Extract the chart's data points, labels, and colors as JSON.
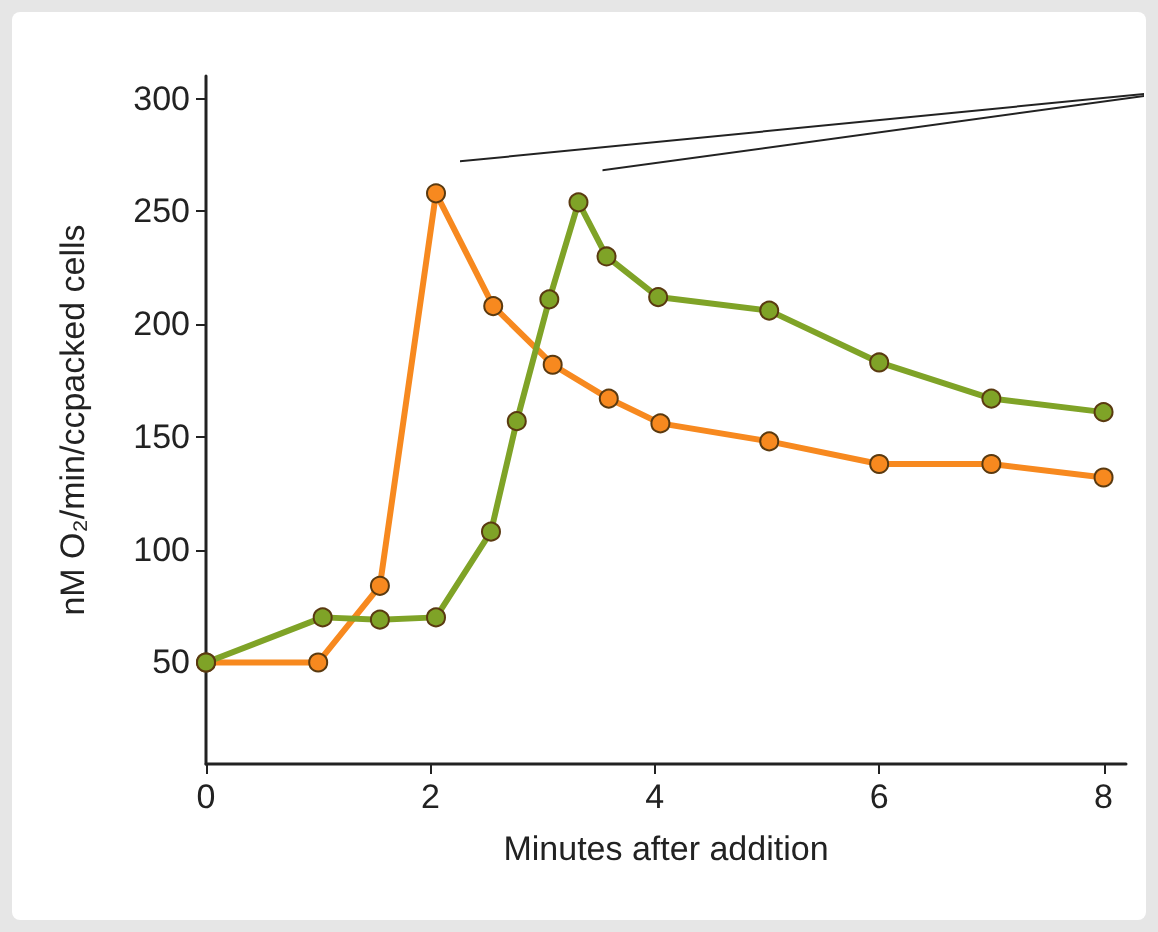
{
  "chart_data": {
    "type": "line",
    "xlabel": "Minutes after addition",
    "ylabel": "nM O₂/min/ccpacked cells",
    "xlim": [
      0,
      8.2
    ],
    "xticks": [
      0,
      2,
      4,
      6,
      8
    ],
    "ylim": [
      5,
      310
    ],
    "yticks": [
      50,
      100,
      150,
      200,
      250,
      300
    ],
    "grid": false,
    "marker": "circle",
    "line_style": "solid",
    "series": [
      {
        "color": "#f7891f",
        "x": [
          0,
          1,
          1.55,
          2.05,
          2.56,
          3.09,
          3.59,
          4.05,
          5.02,
          6,
          7,
          8
        ],
        "values": [
          50,
          50,
          84,
          258,
          208,
          182,
          167,
          156,
          148,
          138,
          138,
          132
        ]
      },
      {
        "color": "#7fa327",
        "x": [
          0,
          1.04,
          1.55,
          2.05,
          2.54,
          2.77,
          3.06,
          3.32,
          3.57,
          4.03,
          5.02,
          6,
          7,
          8
        ],
        "values": [
          50,
          70,
          69,
          70,
          108,
          157,
          211,
          254,
          230,
          212,
          206,
          183,
          167,
          161
        ]
      }
    ]
  }
}
